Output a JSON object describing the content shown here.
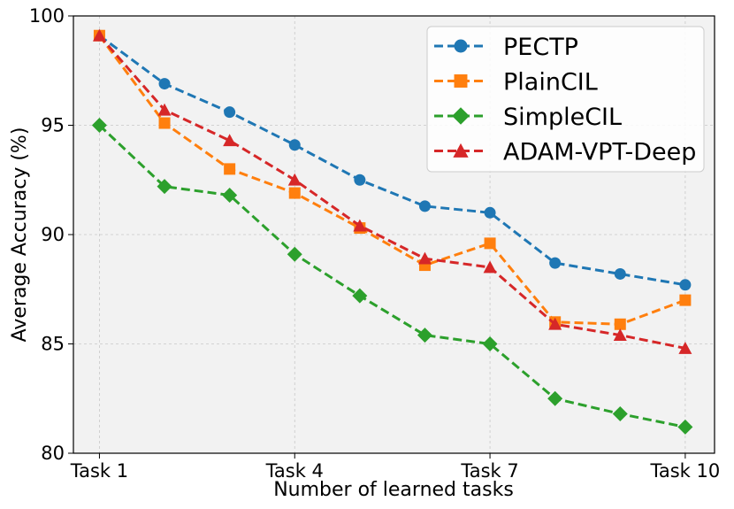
{
  "chart_data": {
    "type": "line",
    "title": "",
    "xlabel": "Number of learned tasks",
    "ylabel": "Average Accuracy (%)",
    "x": [
      1,
      2,
      3,
      4,
      5,
      6,
      7,
      8,
      9,
      10
    ],
    "xticks": [
      1,
      4,
      7,
      10
    ],
    "xtick_labels": [
      "Task 1",
      "Task 4",
      "Task 7",
      "Task 10"
    ],
    "xlim": [
      0.6,
      10.45
    ],
    "ylim": [
      80,
      100
    ],
    "yticks": [
      80,
      85,
      90,
      95,
      100
    ],
    "ytick_labels": [
      "80",
      "85",
      "90",
      "95",
      "100"
    ],
    "grid": true,
    "legend_position": "top-right",
    "series": [
      {
        "name": "PECTP",
        "color": "#1f77b4",
        "marker": "circle",
        "values": [
          99.1,
          96.9,
          95.6,
          94.1,
          92.5,
          91.3,
          91.0,
          88.7,
          88.2,
          87.7
        ]
      },
      {
        "name": "PlainCIL",
        "color": "#ff7f0e",
        "marker": "square",
        "values": [
          99.1,
          95.1,
          93.0,
          91.9,
          90.3,
          88.6,
          89.6,
          86.0,
          85.9,
          87.0
        ]
      },
      {
        "name": "SimpleCIL",
        "color": "#2ca02c",
        "marker": "diamond",
        "values": [
          95.0,
          92.2,
          91.8,
          89.1,
          87.2,
          85.4,
          85.0,
          82.5,
          81.8,
          81.2
        ]
      },
      {
        "name": "ADAM-VPT-Deep",
        "color": "#d62728",
        "marker": "triangle",
        "values": [
          99.1,
          95.7,
          94.3,
          92.5,
          90.4,
          88.9,
          88.5,
          85.9,
          85.4,
          84.8
        ]
      }
    ]
  }
}
